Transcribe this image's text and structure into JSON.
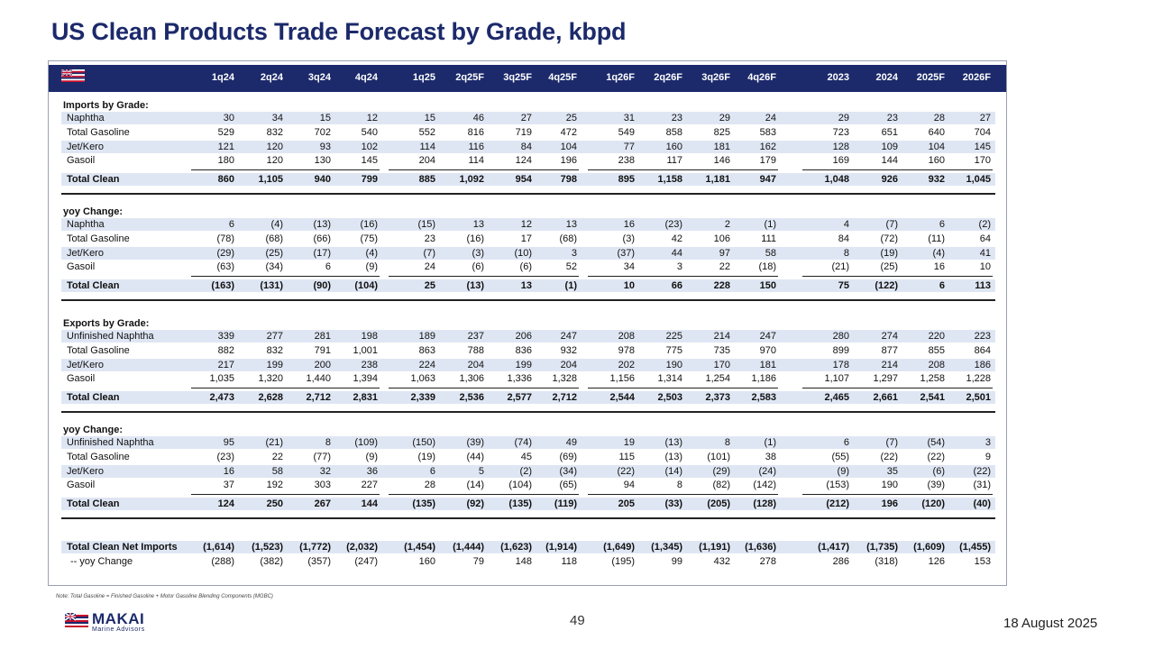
{
  "title": "US Clean Products Trade Forecast by Grade, kbpd",
  "columns": [
    "1q24",
    "2q24",
    "3q24",
    "4q24",
    "1q25",
    "2q25F",
    "3q25F",
    "4q25F",
    "1q26F",
    "2q26F",
    "3q26F",
    "4q26F",
    "2023",
    "2024",
    "2025F",
    "2026F"
  ],
  "sections": [
    {
      "heading": "Imports by Grade:",
      "rows": [
        {
          "label": "Naphtha",
          "values": [
            "30",
            "34",
            "15",
            "12",
            "15",
            "46",
            "27",
            "25",
            "31",
            "23",
            "29",
            "24",
            "29",
            "23",
            "28",
            "27"
          ]
        },
        {
          "label": "Total Gasoline",
          "values": [
            "529",
            "832",
            "702",
            "540",
            "552",
            "816",
            "719",
            "472",
            "549",
            "858",
            "825",
            "583",
            "723",
            "651",
            "640",
            "704"
          ]
        },
        {
          "label": "Jet/Kero",
          "values": [
            "121",
            "120",
            "93",
            "102",
            "114",
            "116",
            "84",
            "104",
            "77",
            "160",
            "181",
            "162",
            "128",
            "109",
            "104",
            "145"
          ]
        },
        {
          "label": "Gasoil",
          "values": [
            "180",
            "120",
            "130",
            "145",
            "204",
            "114",
            "124",
            "196",
            "238",
            "117",
            "146",
            "179",
            "169",
            "144",
            "160",
            "170"
          ]
        }
      ],
      "total": {
        "label": "Total Clean",
        "values": [
          "860",
          "1,105",
          "940",
          "799",
          "885",
          "1,092",
          "954",
          "798",
          "895",
          "1,158",
          "1,181",
          "947",
          "1,048",
          "926",
          "932",
          "1,045"
        ]
      }
    },
    {
      "heading": "yoy Change:",
      "rows": [
        {
          "label": "Naphtha",
          "values": [
            "6",
            "(4)",
            "(13)",
            "(16)",
            "(15)",
            "13",
            "12",
            "13",
            "16",
            "(23)",
            "2",
            "(1)",
            "4",
            "(7)",
            "6",
            "(2)"
          ]
        },
        {
          "label": "Total Gasoline",
          "values": [
            "(78)",
            "(68)",
            "(66)",
            "(75)",
            "23",
            "(16)",
            "17",
            "(68)",
            "(3)",
            "42",
            "106",
            "111",
            "84",
            "(72)",
            "(11)",
            "64"
          ]
        },
        {
          "label": "Jet/Kero",
          "values": [
            "(29)",
            "(25)",
            "(17)",
            "(4)",
            "(7)",
            "(3)",
            "(10)",
            "3",
            "(37)",
            "44",
            "97",
            "58",
            "8",
            "(19)",
            "(4)",
            "41"
          ]
        },
        {
          "label": "Gasoil",
          "values": [
            "(63)",
            "(34)",
            "6",
            "(9)",
            "24",
            "(6)",
            "(6)",
            "52",
            "34",
            "3",
            "22",
            "(18)",
            "(21)",
            "(25)",
            "16",
            "10"
          ]
        }
      ],
      "total": {
        "label": "Total Clean",
        "values": [
          "(163)",
          "(131)",
          "(90)",
          "(104)",
          "25",
          "(13)",
          "13",
          "(1)",
          "10",
          "66",
          "228",
          "150",
          "75",
          "(122)",
          "6",
          "113"
        ]
      }
    },
    {
      "heading": "Exports by Grade:",
      "rows": [
        {
          "label": "Unfinished Naphtha",
          "values": [
            "339",
            "277",
            "281",
            "198",
            "189",
            "237",
            "206",
            "247",
            "208",
            "225",
            "214",
            "247",
            "280",
            "274",
            "220",
            "223"
          ]
        },
        {
          "label": "Total Gasoline",
          "values": [
            "882",
            "832",
            "791",
            "1,001",
            "863",
            "788",
            "836",
            "932",
            "978",
            "775",
            "735",
            "970",
            "899",
            "877",
            "855",
            "864"
          ]
        },
        {
          "label": "Jet/Kero",
          "values": [
            "217",
            "199",
            "200",
            "238",
            "224",
            "204",
            "199",
            "204",
            "202",
            "190",
            "170",
            "181",
            "178",
            "214",
            "208",
            "186"
          ]
        },
        {
          "label": "Gasoil",
          "values": [
            "1,035",
            "1,320",
            "1,440",
            "1,394",
            "1,063",
            "1,306",
            "1,336",
            "1,328",
            "1,156",
            "1,314",
            "1,254",
            "1,186",
            "1,107",
            "1,297",
            "1,258",
            "1,228"
          ]
        }
      ],
      "total": {
        "label": "Total Clean",
        "values": [
          "2,473",
          "2,628",
          "2,712",
          "2,831",
          "2,339",
          "2,536",
          "2,577",
          "2,712",
          "2,544",
          "2,503",
          "2,373",
          "2,583",
          "2,465",
          "2,661",
          "2,541",
          "2,501"
        ]
      }
    },
    {
      "heading": "yoy Change:",
      "rows": [
        {
          "label": "Unfinished Naphtha",
          "values": [
            "95",
            "(21)",
            "8",
            "(109)",
            "(150)",
            "(39)",
            "(74)",
            "49",
            "19",
            "(13)",
            "8",
            "(1)",
            "6",
            "(7)",
            "(54)",
            "3"
          ]
        },
        {
          "label": "Total Gasoline",
          "values": [
            "(23)",
            "22",
            "(77)",
            "(9)",
            "(19)",
            "(44)",
            "45",
            "(69)",
            "115",
            "(13)",
            "(101)",
            "38",
            "(55)",
            "(22)",
            "(22)",
            "9"
          ]
        },
        {
          "label": "Jet/Kero",
          "values": [
            "16",
            "58",
            "32",
            "36",
            "6",
            "5",
            "(2)",
            "(34)",
            "(22)",
            "(14)",
            "(29)",
            "(24)",
            "(9)",
            "35",
            "(6)",
            "(22)"
          ]
        },
        {
          "label": "Gasoil",
          "values": [
            "37",
            "192",
            "303",
            "227",
            "28",
            "(14)",
            "(104)",
            "(65)",
            "94",
            "8",
            "(82)",
            "(142)",
            "(153)",
            "190",
            "(39)",
            "(31)"
          ]
        }
      ],
      "total": {
        "label": "Total Clean",
        "values": [
          "124",
          "250",
          "267",
          "144",
          "(135)",
          "(92)",
          "(135)",
          "(119)",
          "205",
          "(33)",
          "(205)",
          "(128)",
          "(212)",
          "196",
          "(120)",
          "(40)"
        ]
      }
    }
  ],
  "net": {
    "label": "Total Clean Net Imports",
    "values": [
      "(1,614)",
      "(1,523)",
      "(1,772)",
      "(2,032)",
      "(1,454)",
      "(1,444)",
      "(1,623)",
      "(1,914)",
      "(1,649)",
      "(1,345)",
      "(1,191)",
      "(1,636)",
      "(1,417)",
      "(1,735)",
      "(1,609)",
      "(1,455)"
    ],
    "yoy_label": "-- yoy Change",
    "yoy_values": [
      "(288)",
      "(382)",
      "(357)",
      "(247)",
      "160",
      "79",
      "148",
      "118",
      "(195)",
      "99",
      "432",
      "278",
      "286",
      "(318)",
      "126",
      "153"
    ]
  },
  "note": "Note: Total Gasoline = Finished Gasoline + Motor Gasoline Blending Components (MGBC)",
  "page_number": "49",
  "date": "18 August 2025",
  "logo": {
    "name": "MAKAI",
    "tagline": "Marine Advisors"
  },
  "colors": {
    "navy": "#1c2a6b",
    "shade": "#dfe6f3",
    "flag_red": "#c8102e"
  }
}
